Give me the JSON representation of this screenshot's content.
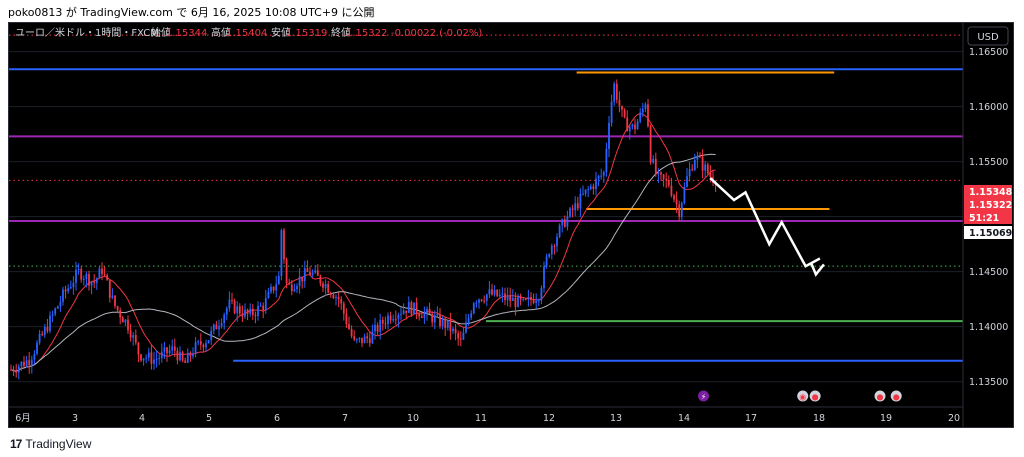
{
  "header": {
    "text": "poko0813 が TradingView.com で 6月 16, 2025 10:08 UTC+9 に公開"
  },
  "footer": {
    "brand": "TradingView",
    "logo_glyph": "17"
  },
  "colors": {
    "up": "#2962ff",
    "down": "#f23645",
    "background": "#000000",
    "blue_level": "#2962ff",
    "purple_level": "#9c27b0",
    "orange_level": "#ff9800",
    "green_level": "#4caf50",
    "ma_fast": "#f23645",
    "ma_slow": "#b2b5be",
    "price_up_label": "#f23645",
    "dotted_red": "#f23645",
    "dotted_green": "#4caf50"
  },
  "chart_data": {
    "type": "candlestick",
    "title": "ユーロ／米ドル・1時間・FXCM",
    "ohlc_labels": {
      "open_label": "始値",
      "open": "1.15344",
      "high_label": "高値",
      "high": "1.15404",
      "low_label": "安値",
      "low": "1.15319",
      "close_label": "終値",
      "close": "1.15322",
      "change": "-0.00022 (-0.02%)"
    },
    "currency": "USD",
    "ylim": [
      1.1327,
      1.1676
    ],
    "y_ticks": [
      "1.16500",
      "1.16000",
      "1.15500",
      "1.15000",
      "1.14500",
      "1.14000",
      "1.13500"
    ],
    "y_tick_values": [
      1.165,
      1.16,
      1.155,
      1.15,
      1.145,
      1.14,
      1.135
    ],
    "x_ticks": [
      "6月",
      "3",
      "4",
      "5",
      "6",
      "7",
      "10",
      "11",
      "12",
      "13",
      "14",
      "17",
      "18",
      "19",
      "20"
    ],
    "price_labels": [
      {
        "text": "1.15348",
        "value": 1.15348,
        "style": "red"
      },
      {
        "text": "1.15322",
        "value": 1.15322,
        "style": "red"
      },
      {
        "text": "51:21",
        "value": 1.1523,
        "style": "red"
      },
      {
        "text": "1.15069",
        "value": 1.15069,
        "style": "grey"
      }
    ],
    "levels": [
      {
        "name": "blue-top",
        "value": 1.1634,
        "color": "blue",
        "from": 0.0,
        "to": 1.0
      },
      {
        "name": "orange-top",
        "value": 1.1631,
        "color": "orange",
        "from": 0.595,
        "to": 0.865
      },
      {
        "name": "purple-upper",
        "value": 1.1573,
        "color": "purple",
        "from": 0.0,
        "to": 1.0
      },
      {
        "name": "orange-mid",
        "value": 1.1507,
        "color": "orange",
        "from": 0.605,
        "to": 0.86
      },
      {
        "name": "purple-lower",
        "value": 1.1496,
        "color": "purple",
        "from": 0.0,
        "to": 1.0
      },
      {
        "name": "green",
        "value": 1.1405,
        "color": "green",
        "from": 0.5,
        "to": 1.0
      },
      {
        "name": "blue-bottom",
        "value": 1.1369,
        "color": "blue",
        "from": 0.235,
        "to": 1.0
      }
    ],
    "dotted_levels": [
      {
        "value": 1.1665,
        "color": "red"
      },
      {
        "value": 1.1533,
        "color": "red"
      },
      {
        "value": 1.1455,
        "color": "green"
      }
    ],
    "projection": [
      [
        0.735,
        1.1535
      ],
      [
        0.76,
        1.1515
      ],
      [
        0.772,
        1.1522
      ],
      [
        0.797,
        1.1475
      ],
      [
        0.81,
        1.1495
      ],
      [
        0.835,
        1.1455
      ],
      [
        0.85,
        1.1462
      ]
    ],
    "event_icons": [
      {
        "name": "lightning-event-icon",
        "glyph": "⚡",
        "x": 0.728
      },
      {
        "name": "globe-event-icon",
        "glyph": "◉",
        "x": 0.832
      },
      {
        "name": "us-flag-event-icon",
        "glyph": "●",
        "x": 0.845
      },
      {
        "name": "us-flag-event-icon",
        "glyph": "●",
        "x": 0.913
      },
      {
        "name": "us-flag-event-icon",
        "glyph": "●",
        "x": 0.93
      }
    ],
    "anchors": [
      [
        0,
        1.136
      ],
      [
        20,
        1.137
      ],
      [
        35,
        1.1395
      ],
      [
        55,
        1.143
      ],
      [
        70,
        1.145
      ],
      [
        85,
        1.144
      ],
      [
        93,
        1.1452
      ],
      [
        105,
        1.142
      ],
      [
        120,
        1.14
      ],
      [
        130,
        1.1375
      ],
      [
        145,
        1.137
      ],
      [
        165,
        1.138
      ],
      [
        175,
        1.1365
      ],
      [
        185,
        1.138
      ],
      [
        200,
        1.139
      ],
      [
        220,
        1.142
      ],
      [
        240,
        1.141
      ],
      [
        255,
        1.142
      ],
      [
        270,
        1.1445
      ],
      [
        272,
        1.1492
      ],
      [
        278,
        1.1435
      ],
      [
        300,
        1.145
      ],
      [
        315,
        1.144
      ],
      [
        330,
        1.1425
      ],
      [
        345,
        1.1385
      ],
      [
        360,
        1.139
      ],
      [
        380,
        1.141
      ],
      [
        400,
        1.1418
      ],
      [
        420,
        1.141
      ],
      [
        440,
        1.14
      ],
      [
        452,
        1.1385
      ],
      [
        465,
        1.1425
      ],
      [
        480,
        1.143
      ],
      [
        500,
        1.1425
      ],
      [
        515,
        1.142
      ],
      [
        530,
        1.143
      ],
      [
        540,
        1.147
      ],
      [
        555,
        1.1495
      ],
      [
        575,
        1.152
      ],
      [
        595,
        1.154
      ],
      [
        600,
        1.159
      ],
      [
        605,
        1.162
      ],
      [
        615,
        1.1585
      ],
      [
        625,
        1.158
      ],
      [
        633,
        1.1595
      ],
      [
        638,
        1.161
      ],
      [
        640,
        1.156
      ],
      [
        648,
        1.1535
      ],
      [
        660,
        1.153
      ],
      [
        670,
        1.1505
      ],
      [
        678,
        1.1535
      ],
      [
        686,
        1.1555
      ],
      [
        695,
        1.1545
      ],
      [
        703,
        1.1535
      ],
      [
        710,
        1.1535
      ]
    ]
  }
}
